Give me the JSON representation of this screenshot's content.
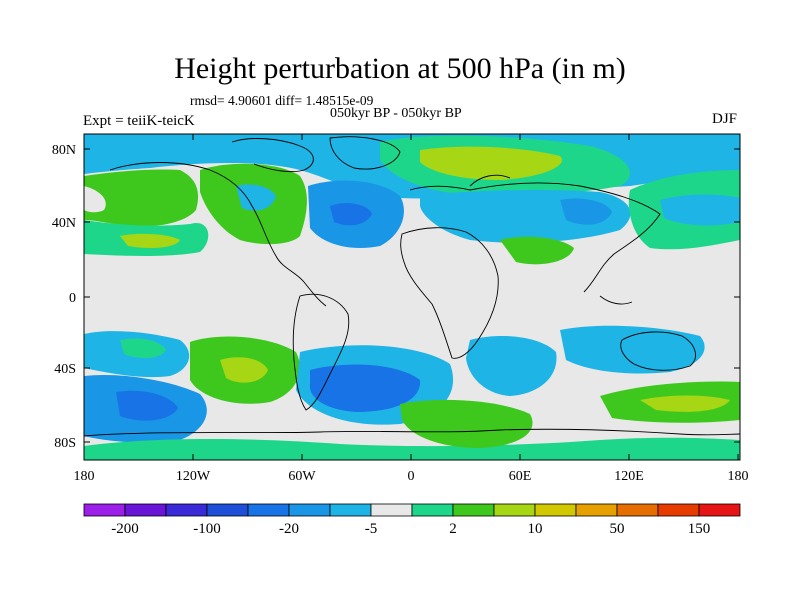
{
  "title": "Height perturbation at 500 hPa (in m)",
  "stats": "rmsd= 4.90601  diff= 1.48515e-09",
  "period": "050kyr BP - 050kyr BP",
  "experiment": "Expt = teiiK-teicK",
  "season": "DJF",
  "lat_labels": [
    "80N",
    "40N",
    "0",
    "40S",
    "80S"
  ],
  "lon_labels": [
    "180",
    "120W",
    "60W",
    "0",
    "60E",
    "120E",
    "180"
  ],
  "colorbar": {
    "colors": [
      "#9b1fe8",
      "#6a14d8",
      "#3a2ad8",
      "#1e4fd8",
      "#1873e6",
      "#1996e6",
      "#1eb4e6",
      "#e8e8e8",
      "#1ed68a",
      "#3ec81e",
      "#a6d614",
      "#d2c800",
      "#e6a000",
      "#e66e00",
      "#e63c00",
      "#e61414"
    ],
    "labels": [
      "-200",
      "-100",
      "-20",
      "-5",
      "2",
      "10",
      "50",
      "150"
    ]
  }
}
